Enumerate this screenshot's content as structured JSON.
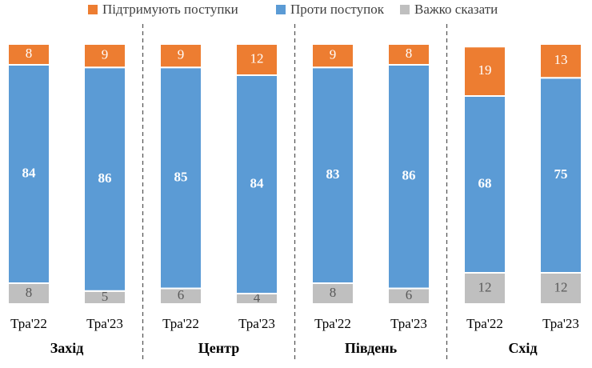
{
  "chart_data": {
    "type": "stacked-bar",
    "categories": [
      "Тра'22",
      "Тра'23",
      "Тра'22",
      "Тра'23",
      "Тра'22",
      "Тра'23",
      "Тра'22",
      "Тра'23"
    ],
    "groups": [
      "Захід",
      "Центр",
      "Південь",
      "Схід"
    ],
    "series": [
      {
        "name": "Підтримують поступки",
        "color": "#ed7d31",
        "label_color": "#ffffff",
        "label_bold": false,
        "values": [
          8,
          9,
          9,
          12,
          9,
          8,
          19,
          13
        ]
      },
      {
        "name": "Проти поступок",
        "color": "#5b9bd5",
        "label_color": "#ffffff",
        "label_bold": true,
        "values": [
          84,
          86,
          85,
          84,
          83,
          86,
          68,
          75
        ]
      },
      {
        "name": "Важко сказати",
        "color": "#bfbfbf",
        "label_color": "#595959",
        "label_bold": false,
        "values": [
          8,
          5,
          6,
          4,
          8,
          6,
          12,
          12
        ]
      }
    ],
    "legend": "top"
  }
}
